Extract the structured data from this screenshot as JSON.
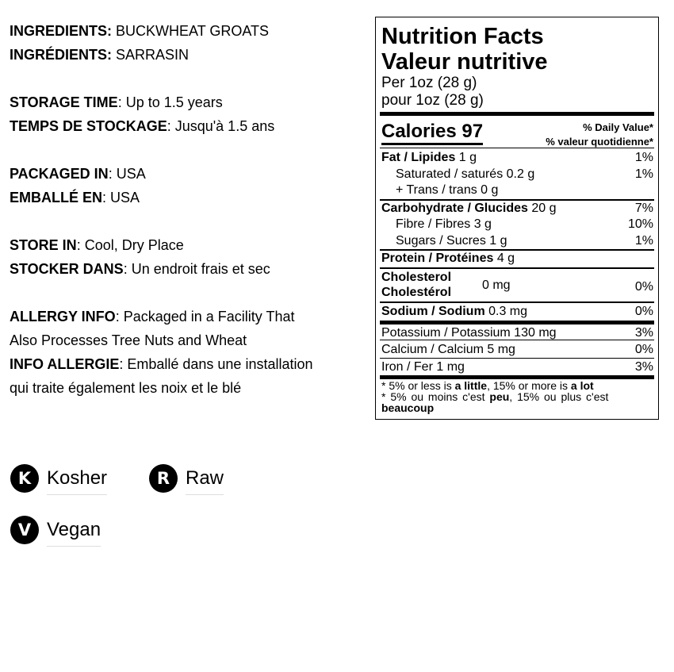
{
  "info": [
    {
      "label": "INGREDIENTS:",
      "value": " BUCKWHEAT GROATS"
    },
    {
      "label": "INGRÉDIENTS:",
      "value": " SARRASIN"
    },
    {
      "label": "STORAGE TIME",
      "value": ": Up to 1.5 years"
    },
    {
      "label": "TEMPS DE STOCKAGE",
      "value": ": Jusqu'à 1.5 ans"
    },
    {
      "label": "PACKAGED IN",
      "value": ": USA"
    },
    {
      "label": "EMBALLÉ EN",
      "value": ": USA"
    },
    {
      "label": "STORE IN",
      "value": ": Cool, Dry Place"
    },
    {
      "label": "STOCKER DANS",
      "value": ": Un endroit frais et sec"
    },
    {
      "label": "ALLERGY INFO",
      "value": ": Packaged in a Facility That"
    },
    {
      "label": "",
      "value": "Also Processes Tree Nuts and Wheat"
    },
    {
      "label": "INFO ALLERGIE",
      "value": ": Emballé dans une installation"
    },
    {
      "label": "",
      "value": "qui traite également les noix et le blé"
    }
  ],
  "badges": [
    {
      "letter": "K",
      "label": "Kosher"
    },
    {
      "letter": "R",
      "label": "Raw"
    },
    {
      "letter": "V",
      "label": "Vegan"
    }
  ],
  "nutrition": {
    "title_en": "Nutrition Facts",
    "title_fr": "Valeur nutritive",
    "serving_en": "Per 1oz (28 g)",
    "serving_fr": "pour 1oz (28 g)",
    "calories": "Calories 97",
    "dv_en": "% Daily Value*",
    "dv_fr": "% valeur quotidienne*",
    "rows": [
      {
        "name": "Fat / Lipides",
        "amount": " 1 g",
        "pct": "1%"
      },
      {
        "name": "Saturated / saturés 0.2 g",
        "amount": "",
        "pct": "1%"
      },
      {
        "name": "+ Trans / trans 0 g",
        "amount": "",
        "pct": ""
      },
      {
        "name": "Carbohydrate / Glucides",
        "amount": " 20 g",
        "pct": "7%"
      },
      {
        "name": "Fibre / Fibres 3 g",
        "amount": "",
        "pct": "10%"
      },
      {
        "name": "Sugars / Sucres 1 g",
        "amount": "",
        "pct": "1%"
      },
      {
        "name": "Protein / Protéines",
        "amount": " 4 g",
        "pct": ""
      },
      {
        "name": "Cholesterol",
        "name2": "Cholestérol",
        "amount": "0 mg",
        "pct": "0%"
      },
      {
        "name": "Sodium / Sodium",
        "amount": " 0.3 mg",
        "pct": "0%"
      },
      {
        "name": "Potassium / Potassium 130 mg",
        "amount": "",
        "pct": "3%"
      },
      {
        "name": "Calcium / Calcium 5 mg",
        "amount": "",
        "pct": "0%"
      },
      {
        "name": "Iron / Fer 1 mg",
        "amount": "",
        "pct": "3%"
      }
    ],
    "foot1a": "* 5% or less is ",
    "foot1b": "a little",
    "foot1c": ", 15% or more is ",
    "foot1d": "a lot",
    "foot2a": "* 5% ou moins c'est ",
    "foot2b": "peu",
    "foot2c": ", 15% ou plus c'est",
    "foot3": "beaucoup"
  }
}
